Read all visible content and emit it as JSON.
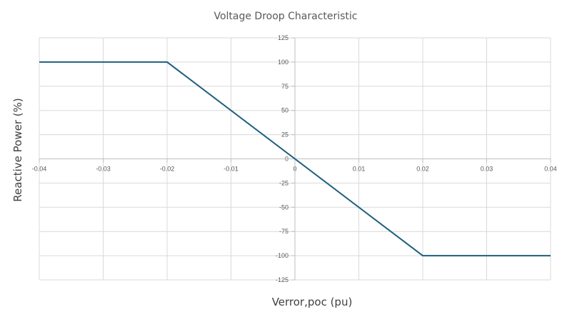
{
  "chart_data": {
    "type": "line",
    "title": "Voltage Droop Characteristic",
    "xlabel": "Verror,poc (pu)",
    "ylabel": "Reactive Power (%)",
    "xlim": [
      -0.04,
      0.04
    ],
    "ylim": [
      -125,
      125
    ],
    "x_ticks": [
      "-0.04",
      "-0.03",
      "-0.02",
      "-0.01",
      "0",
      "0.01",
      "0.02",
      "0.03",
      "0.04"
    ],
    "y_ticks": [
      "125",
      "100",
      "75",
      "50",
      "25",
      "0",
      "-25",
      "-50",
      "-75",
      "-100",
      "-125"
    ],
    "grid": true,
    "legend": "none",
    "series": [
      {
        "color": "#1f5f7f",
        "x": [
          -0.04,
          -0.02,
          0.02,
          0.04
        ],
        "y": [
          100,
          100,
          -100,
          -100
        ]
      }
    ]
  }
}
